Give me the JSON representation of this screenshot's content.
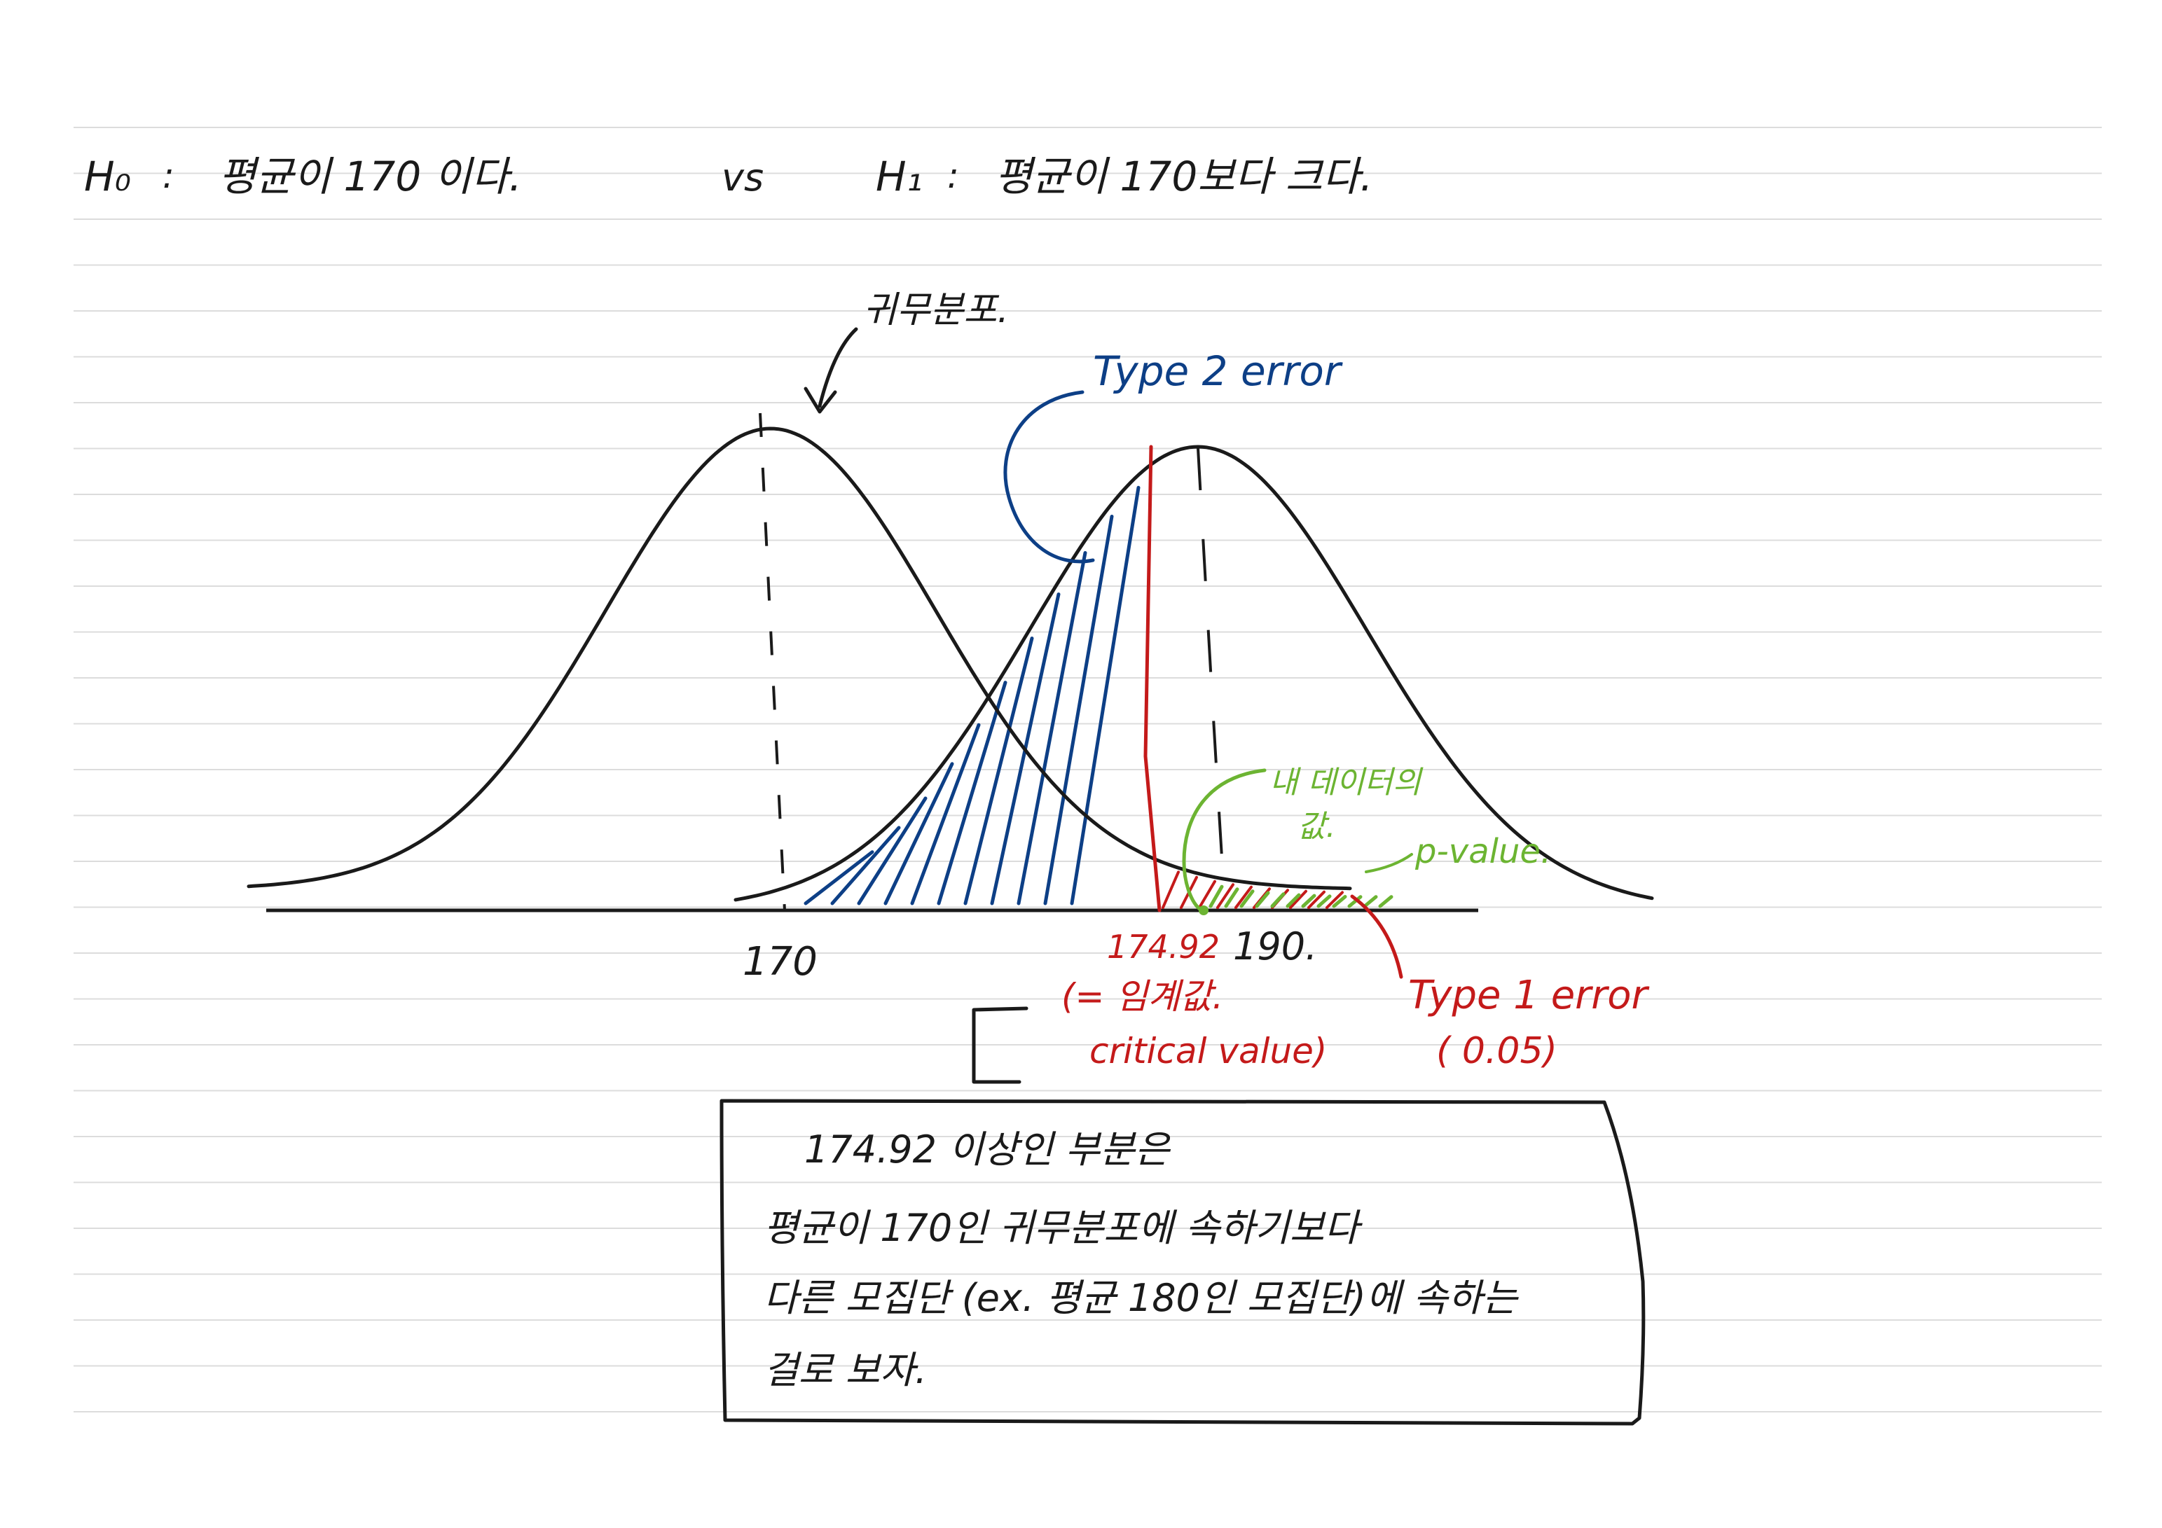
{
  "hypotheses": {
    "h0_symbol": "H₀",
    "h0_colon": ":",
    "h0_text": "평균이 170 이다.",
    "vs": "vs",
    "h1_symbol": "H₁",
    "h1_colon": ":",
    "h1_text": "평균이 170보다 크다."
  },
  "annotations": {
    "null_distribution": "귀무분포.",
    "type2_error": "Type 2 error",
    "my_data_value_line1": "내 데이터의",
    "my_data_value_line2": "값.",
    "p_value": "p-value.",
    "type1_error_line1": "Type 1 error",
    "type1_error_line2": "( 0.05)",
    "critical_line1": "(= 임계값.",
    "critical_line2": "critical value)"
  },
  "axis_labels": {
    "null_mean": "170",
    "critical": "174.92",
    "alt_mean": "190."
  },
  "note_box": {
    "line1": "174.92 이상인 부분은",
    "line2": "평균이 170인 귀무분포에 속하기보다",
    "line3": "다른 모집단 (ex. 평균 180인 모집단)에 속하는",
    "line4": "걸로 보자."
  },
  "colors": {
    "ink": "#1a1a1a",
    "blue": "#0d3f86",
    "red": "#c41a1a",
    "green": "#6cb432",
    "ruled_line": "#dcdcdc"
  }
}
